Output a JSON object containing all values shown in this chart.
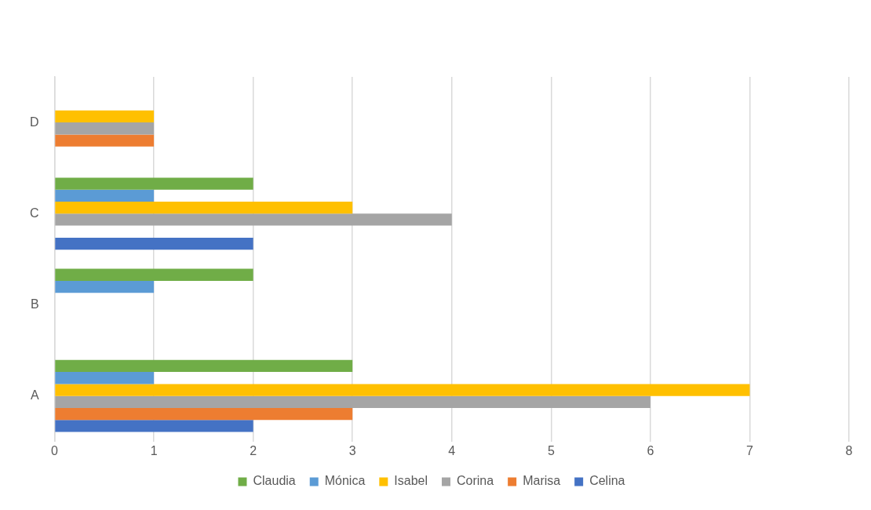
{
  "chart_data": {
    "type": "bar",
    "orientation": "horizontal",
    "categories": [
      "D",
      "C",
      "B",
      "A"
    ],
    "series": [
      {
        "name": "Claudia",
        "color": "#70ad47",
        "values": [
          null,
          2,
          2,
          3
        ]
      },
      {
        "name": "Mónica",
        "color": "#5b9bd5",
        "values": [
          null,
          1,
          1,
          1
        ]
      },
      {
        "name": "Isabel",
        "color": "#ffc000",
        "values": [
          1,
          3,
          null,
          7
        ]
      },
      {
        "name": "Corina",
        "color": "#a5a5a5",
        "values": [
          1,
          4,
          null,
          6
        ]
      },
      {
        "name": "Marisa",
        "color": "#ed7d31",
        "values": [
          1,
          null,
          null,
          3
        ]
      },
      {
        "name": "Celina",
        "color": "#4472c4",
        "values": [
          null,
          2,
          null,
          2
        ]
      }
    ],
    "xlim": [
      0,
      8
    ],
    "xticks": [
      0,
      1,
      2,
      3,
      4,
      5,
      6,
      7,
      8
    ],
    "grid": "x",
    "legend": "bottom"
  }
}
